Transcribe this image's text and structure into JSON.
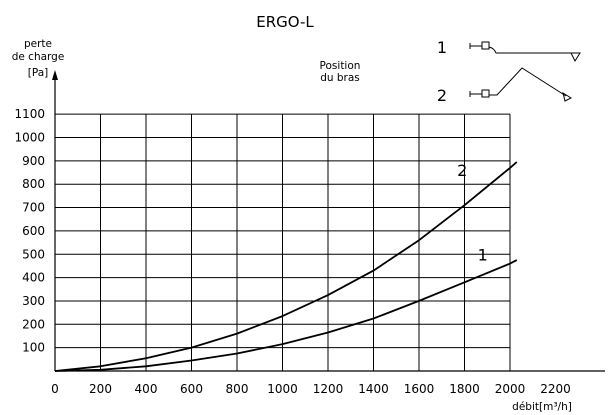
{
  "chart_data": {
    "type": "line",
    "title": "ERGO-L",
    "ylabel": [
      "perte",
      "de charge",
      "[Pa]"
    ],
    "xlabel": "débit[m³/h]",
    "xlim": [
      0,
      2400
    ],
    "ylim": [
      0,
      1200
    ],
    "x_ticks": [
      "0",
      "200",
      "400",
      "600",
      "800",
      "1000",
      "1200",
      "1400",
      "1600",
      "1800",
      "2000",
      "2200"
    ],
    "y_ticks": [
      "100",
      "200",
      "300",
      "400",
      "500",
      "600",
      "700",
      "800",
      "900",
      "1000",
      "1100"
    ],
    "grid": true,
    "legend": {
      "title": [
        "Position",
        "du bras"
      ],
      "entries": [
        "1",
        "2"
      ]
    },
    "series": [
      {
        "name": "1",
        "x": [
          0,
          200,
          400,
          600,
          800,
          1000,
          1200,
          1400,
          1600,
          1800,
          2000,
          2030
        ],
        "y": [
          0,
          5,
          20,
          45,
          75,
          115,
          165,
          225,
          300,
          380,
          460,
          475
        ]
      },
      {
        "name": "2",
        "x": [
          0,
          200,
          400,
          600,
          800,
          1000,
          1200,
          1400,
          1600,
          1800,
          2000,
          2030
        ],
        "y": [
          0,
          20,
          55,
          100,
          160,
          235,
          325,
          430,
          560,
          710,
          870,
          895
        ]
      }
    ]
  }
}
